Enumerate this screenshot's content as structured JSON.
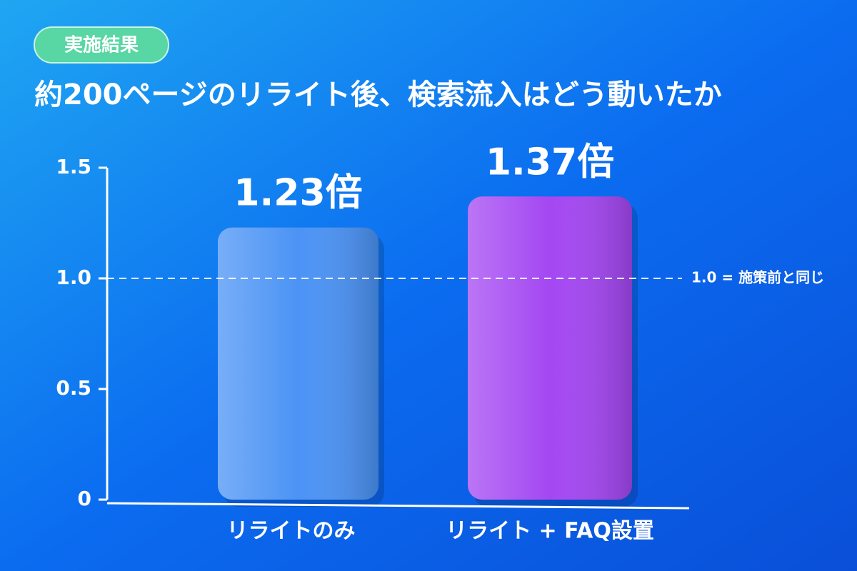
{
  "chart_data": {
    "type": "bar",
    "badge": "実施結果",
    "title": "約200ページのリライト後、検索流入はどう動いたか",
    "categories": [
      "リライトのみ",
      "リライト + FAQ設置"
    ],
    "values": [
      1.23,
      1.37
    ],
    "value_labels": [
      "1.23倍",
      "1.37倍"
    ],
    "colors": [
      "#4b93f5",
      "#a447f2"
    ],
    "ylim": [
      0,
      1.5
    ],
    "yticks": [
      0,
      0.5,
      {
        "value": 1,
        "label": "1.0"
      },
      1.5
    ],
    "reference_line": {
      "value": 1,
      "label": "1.0 = 施策前と同じ"
    }
  }
}
